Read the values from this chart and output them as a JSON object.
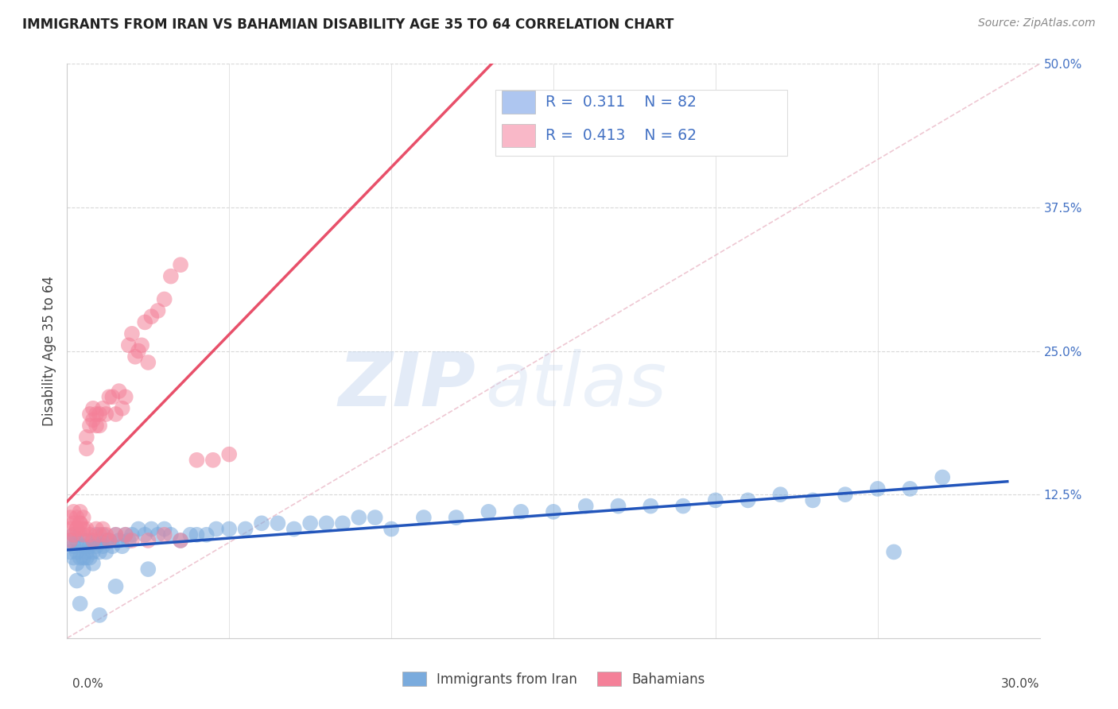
{
  "title": "IMMIGRANTS FROM IRAN VS BAHAMIAN DISABILITY AGE 35 TO 64 CORRELATION CHART",
  "source": "Source: ZipAtlas.com",
  "ylabel": "Disability Age 35 to 64",
  "xlim": [
    0.0,
    0.3
  ],
  "ylim": [
    0.0,
    0.5
  ],
  "ytick_values": [
    0.125,
    0.25,
    0.375,
    0.5
  ],
  "ytick_labels": [
    "12.5%",
    "25.0%",
    "37.5%",
    "50.0%"
  ],
  "legend_entries": [
    {
      "color": "#aec6f0",
      "R": "0.311",
      "N": "82"
    },
    {
      "color": "#f9b8c8",
      "R": "0.413",
      "N": "62"
    }
  ],
  "legend_text_color": "#4472c4",
  "watermark_zip": "ZIP",
  "watermark_atlas": "atlas",
  "blue_scatter_color": "#7aabdd",
  "pink_scatter_color": "#f48098",
  "blue_line_color": "#2255bb",
  "pink_line_color": "#e8506a",
  "diagonal_color": "#e8a0b0",
  "background_color": "#ffffff",
  "grid_color": "#d8d8d8",
  "iran_scatter_x": [
    0.001,
    0.001,
    0.002,
    0.002,
    0.002,
    0.003,
    0.003,
    0.003,
    0.004,
    0.004,
    0.005,
    0.005,
    0.005,
    0.006,
    0.006,
    0.007,
    0.007,
    0.008,
    0.008,
    0.009,
    0.009,
    0.01,
    0.01,
    0.011,
    0.011,
    0.012,
    0.012,
    0.013,
    0.014,
    0.015,
    0.016,
    0.017,
    0.018,
    0.019,
    0.02,
    0.022,
    0.024,
    0.026,
    0.028,
    0.03,
    0.032,
    0.035,
    0.038,
    0.04,
    0.043,
    0.046,
    0.05,
    0.055,
    0.06,
    0.065,
    0.07,
    0.075,
    0.08,
    0.085,
    0.09,
    0.095,
    0.1,
    0.11,
    0.12,
    0.13,
    0.14,
    0.15,
    0.16,
    0.17,
    0.18,
    0.19,
    0.2,
    0.21,
    0.22,
    0.23,
    0.24,
    0.25,
    0.26,
    0.27,
    0.003,
    0.004,
    0.006,
    0.008,
    0.01,
    0.015,
    0.025,
    0.255
  ],
  "iran_scatter_y": [
    0.085,
    0.075,
    0.09,
    0.08,
    0.07,
    0.085,
    0.075,
    0.065,
    0.09,
    0.07,
    0.08,
    0.07,
    0.06,
    0.085,
    0.075,
    0.08,
    0.07,
    0.085,
    0.075,
    0.09,
    0.08,
    0.085,
    0.075,
    0.09,
    0.08,
    0.085,
    0.075,
    0.085,
    0.08,
    0.09,
    0.085,
    0.08,
    0.09,
    0.085,
    0.09,
    0.095,
    0.09,
    0.095,
    0.09,
    0.095,
    0.09,
    0.085,
    0.09,
    0.09,
    0.09,
    0.095,
    0.095,
    0.095,
    0.1,
    0.1,
    0.095,
    0.1,
    0.1,
    0.1,
    0.105,
    0.105,
    0.095,
    0.105,
    0.105,
    0.11,
    0.11,
    0.11,
    0.115,
    0.115,
    0.115,
    0.115,
    0.12,
    0.12,
    0.125,
    0.12,
    0.125,
    0.13,
    0.13,
    0.14,
    0.05,
    0.03,
    0.07,
    0.065,
    0.02,
    0.045,
    0.06,
    0.075
  ],
  "bahamas_scatter_x": [
    0.001,
    0.001,
    0.002,
    0.002,
    0.003,
    0.003,
    0.004,
    0.004,
    0.005,
    0.005,
    0.006,
    0.006,
    0.007,
    0.007,
    0.008,
    0.008,
    0.009,
    0.009,
    0.01,
    0.01,
    0.011,
    0.012,
    0.013,
    0.014,
    0.015,
    0.016,
    0.017,
    0.018,
    0.019,
    0.02,
    0.021,
    0.022,
    0.023,
    0.024,
    0.025,
    0.026,
    0.028,
    0.03,
    0.032,
    0.035,
    0.001,
    0.002,
    0.003,
    0.004,
    0.005,
    0.006,
    0.007,
    0.008,
    0.009,
    0.01,
    0.011,
    0.012,
    0.013,
    0.015,
    0.018,
    0.02,
    0.025,
    0.03,
    0.035,
    0.04,
    0.045,
    0.05
  ],
  "bahamas_scatter_y": [
    0.095,
    0.105,
    0.1,
    0.11,
    0.095,
    0.105,
    0.1,
    0.11,
    0.095,
    0.105,
    0.165,
    0.175,
    0.185,
    0.195,
    0.19,
    0.2,
    0.185,
    0.195,
    0.185,
    0.195,
    0.2,
    0.195,
    0.21,
    0.21,
    0.195,
    0.215,
    0.2,
    0.21,
    0.255,
    0.265,
    0.245,
    0.25,
    0.255,
    0.275,
    0.24,
    0.28,
    0.285,
    0.295,
    0.315,
    0.325,
    0.085,
    0.09,
    0.095,
    0.1,
    0.09,
    0.095,
    0.09,
    0.085,
    0.095,
    0.09,
    0.095,
    0.09,
    0.085,
    0.09,
    0.09,
    0.085,
    0.085,
    0.09,
    0.085,
    0.155,
    0.155,
    0.16
  ]
}
